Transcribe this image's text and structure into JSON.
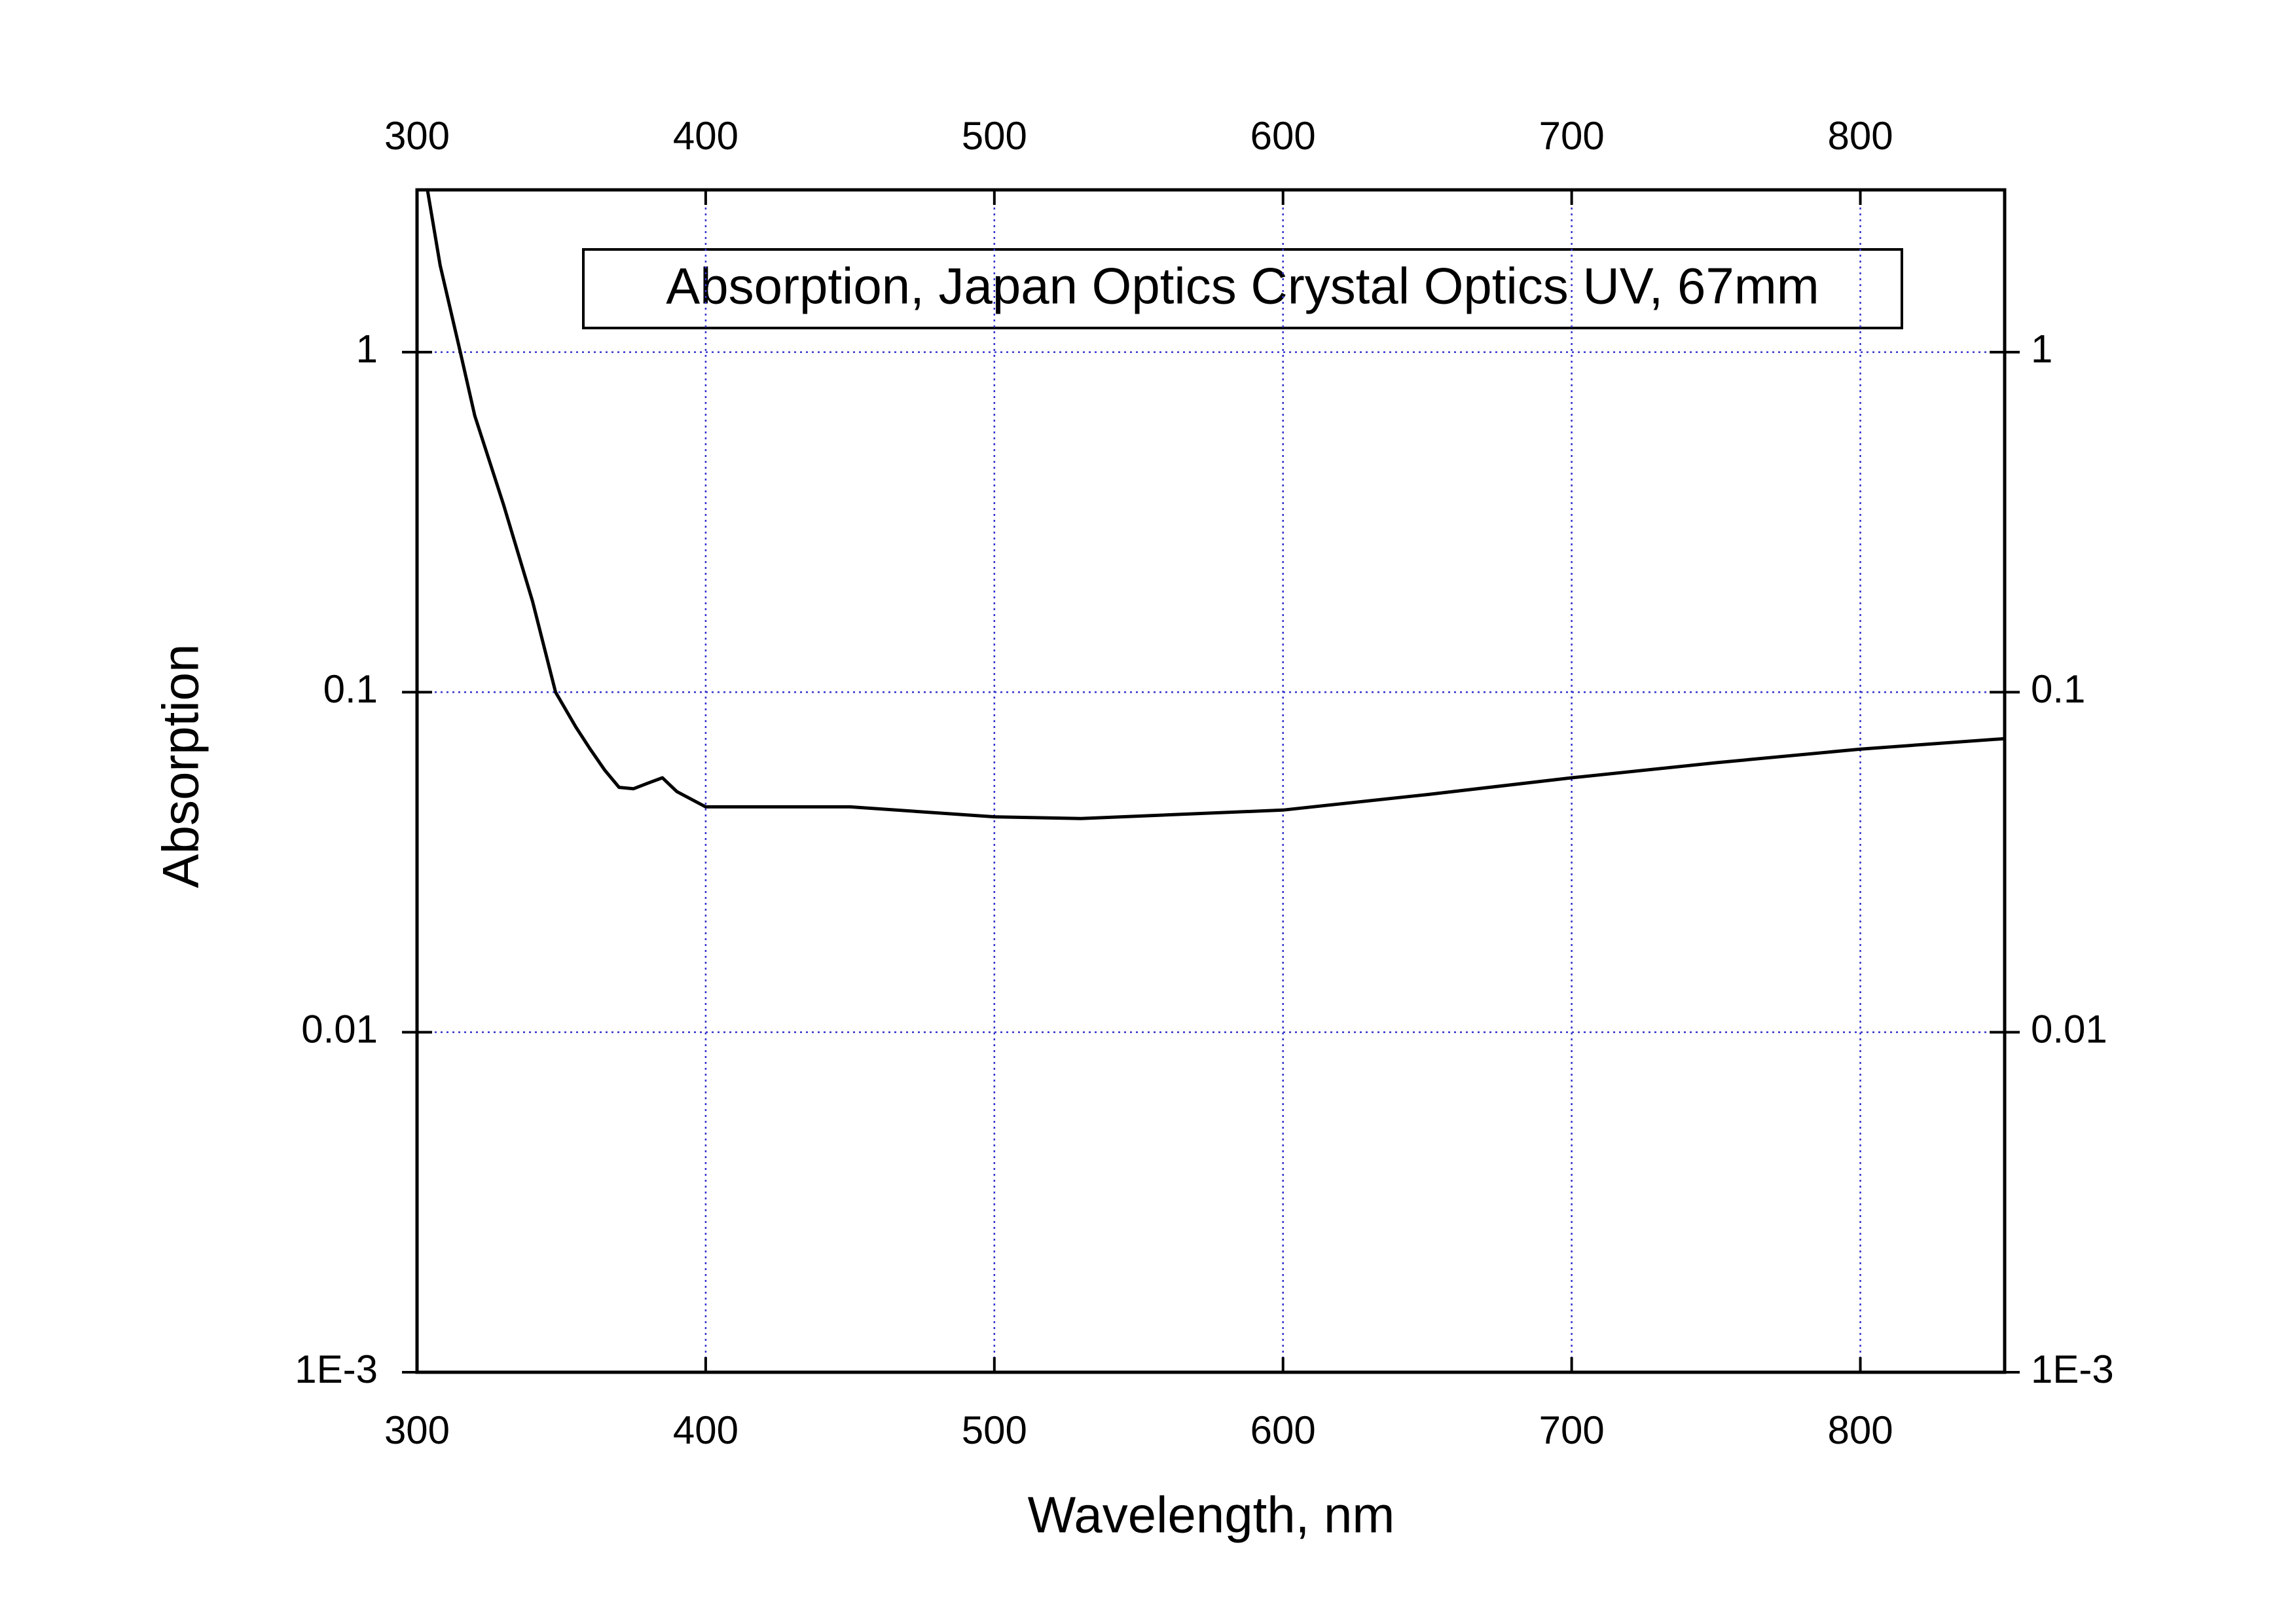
{
  "chart_data": {
    "type": "line",
    "annotation": "Absorption, Japan Optics Crystal Optics UV, 67mm",
    "x_label": "Wavelength, nm",
    "y_label": "Absorption",
    "log_y": true,
    "grid": true,
    "grid_color": "#3333cc",
    "xlim": [
      300,
      850
    ],
    "xticks": [
      300,
      400,
      500,
      600,
      700,
      800
    ],
    "ylim": [
      0.001,
      3
    ],
    "yticks": [
      {
        "value": 0.001,
        "label": "1E-3"
      },
      0.01,
      0.1,
      1
    ],
    "series": [
      {
        "name": "Absorption",
        "color": "#000000",
        "x": [
          303.6,
          308,
          315,
          320,
          330,
          340,
          348,
          355,
          360,
          365,
          370,
          375,
          380,
          385,
          390,
          400,
          410,
          450,
          500,
          530,
          600,
          650,
          700,
          750,
          800,
          850
        ],
        "values": [
          3,
          1.8,
          1,
          0.65,
          0.355,
          0.185,
          0.1,
          0.079,
          0.068,
          0.059,
          0.0525,
          0.052,
          0.054,
          0.056,
          0.051,
          0.046,
          0.046,
          0.046,
          0.043,
          0.0425,
          0.045,
          0.05,
          0.056,
          0.062,
          0.068,
          0.073
        ]
      }
    ]
  }
}
